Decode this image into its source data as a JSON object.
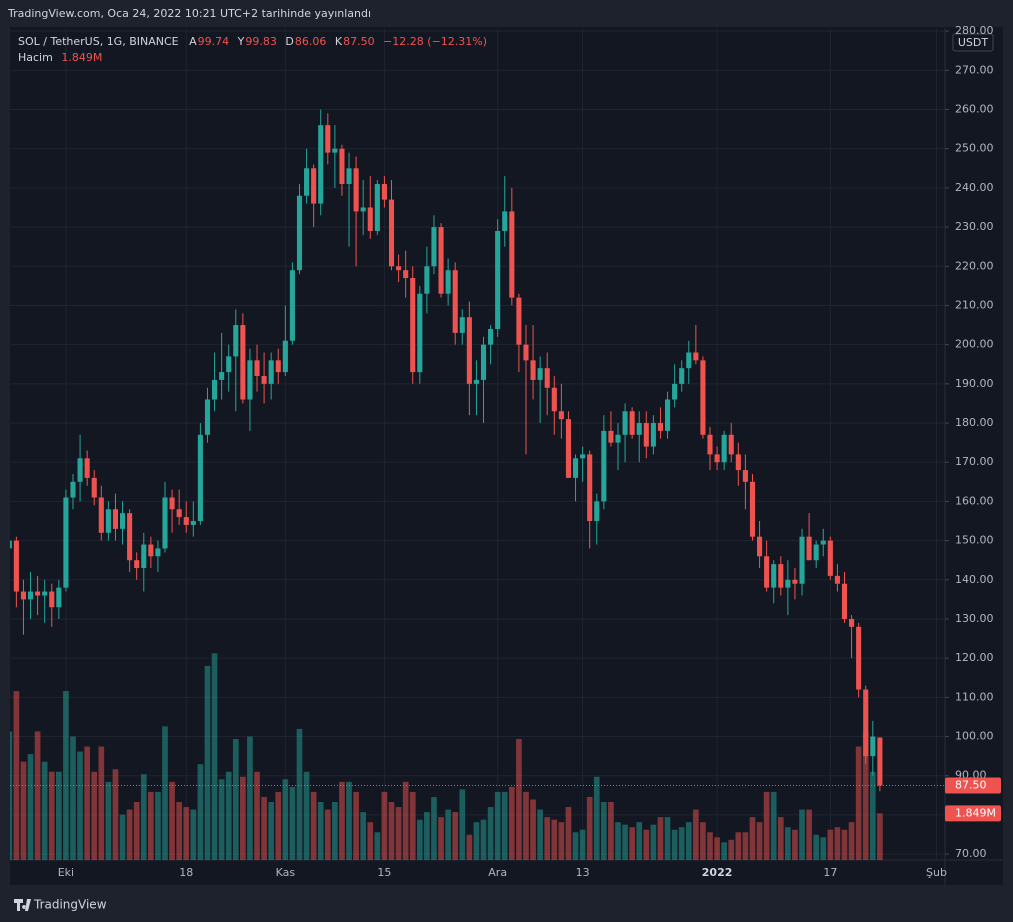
{
  "chart_data": {
    "type": "candlestick",
    "caption": "TradingView.com, Oca 24, 2022 10:21 UTC+2 tarihinde yayınlandı",
    "currency": "USDT",
    "brand": "TradingView",
    "legend": {
      "symbol": "SOL / TetherUS, 1G, BINANCE",
      "labels": [
        "A",
        "Y",
        "D",
        "K"
      ],
      "values": [
        "99.74",
        "99.83",
        "86.06",
        "87.50"
      ],
      "change": "−12.28 (−12.31%)",
      "volume_name": "Hacim",
      "volume_value": "1.849M"
    },
    "last_price_label": "87.50",
    "last_volume_label": "1.849M",
    "up_color": "#26a69a",
    "down_color": "#ef5350",
    "xlim": [
      0.1,
      132.2
    ],
    "xticks": [
      {
        "value": 8,
        "label": "Eki"
      },
      {
        "value": 25,
        "label": "18"
      },
      {
        "value": 39,
        "label": "Kas"
      },
      {
        "value": 53,
        "label": "15"
      },
      {
        "value": 69,
        "label": "Ara"
      },
      {
        "value": 81,
        "label": "13"
      },
      {
        "value": 100,
        "label": "2022"
      },
      {
        "value": 116,
        "label": "17"
      },
      {
        "value": 131,
        "label": "Şub"
      }
    ],
    "ylim": [
      68.5,
      280.8
    ],
    "yticks": [
      {
        "value": 70,
        "label": "70.00"
      },
      {
        "value": 80,
        "label": "80.00"
      },
      {
        "value": 90,
        "label": "90.00"
      },
      {
        "value": 100,
        "label": "100.00"
      },
      {
        "value": 110,
        "label": "110.00"
      },
      {
        "value": 120,
        "label": "120.00"
      },
      {
        "value": 130,
        "label": "130.00"
      },
      {
        "value": 140,
        "label": "140.00"
      },
      {
        "value": 150,
        "label": "150.00"
      },
      {
        "value": 160,
        "label": "160.00"
      },
      {
        "value": 170,
        "label": "170.00"
      },
      {
        "value": 180,
        "label": "180.00"
      },
      {
        "value": 190,
        "label": "190.00"
      },
      {
        "value": 200,
        "label": "200.00"
      },
      {
        "value": 210,
        "label": "210.00"
      },
      {
        "value": 220,
        "label": "220.00"
      },
      {
        "value": 230,
        "label": "230.00"
      },
      {
        "value": 240,
        "label": "240.00"
      },
      {
        "value": 250,
        "label": "250.00"
      },
      {
        "value": 260,
        "label": "260.00"
      },
      {
        "value": 270,
        "label": "270.00"
      },
      {
        "value": 280,
        "label": "280.00"
      }
    ],
    "grid": true,
    "y2lim": [
      0,
      33000000
    ],
    "open": [
      148,
      150,
      137,
      135,
      137,
      136,
      137,
      133,
      138,
      161,
      165,
      171,
      166,
      161,
      152,
      158,
      153,
      157,
      145,
      143,
      149,
      146,
      148,
      161,
      158,
      156,
      154,
      155,
      177,
      186,
      191,
      193,
      197,
      205,
      186,
      196,
      192,
      190,
      196,
      193,
      201,
      219,
      238,
      245,
      236,
      256,
      249,
      250,
      241,
      245,
      234,
      235,
      229,
      241,
      237,
      220,
      219,
      217,
      193,
      213,
      220,
      230,
      213,
      219,
      203,
      207,
      190,
      191,
      200,
      204,
      229,
      234,
      212,
      200,
      196,
      191,
      194,
      189,
      183,
      181,
      166,
      171,
      172,
      155,
      160,
      178,
      175,
      177,
      183,
      177,
      180,
      174,
      180,
      178,
      186,
      190,
      194,
      198,
      196,
      177,
      172,
      170,
      177,
      172,
      168,
      165,
      151,
      146,
      138,
      144,
      138,
      140,
      139,
      151,
      145,
      149,
      150,
      141,
      139,
      130,
      128,
      112,
      95,
      99.74
    ],
    "high": [
      152,
      151,
      140,
      142,
      141,
      140,
      139,
      140,
      163,
      167,
      177,
      173,
      168,
      164,
      160,
      162,
      160,
      158,
      147,
      152,
      151,
      150,
      165,
      163,
      163,
      160,
      160,
      180,
      189,
      198,
      203,
      200,
      209,
      208,
      199,
      200,
      198,
      198,
      199,
      210,
      221,
      241,
      250,
      246,
      260,
      259,
      256,
      251,
      249,
      248,
      242,
      243,
      242,
      243,
      242,
      223,
      224,
      220,
      215,
      225,
      233,
      231,
      222,
      221,
      209,
      211,
      196,
      202,
      205,
      232,
      243,
      240,
      213,
      205,
      205,
      197,
      198,
      192,
      190,
      183,
      172,
      174,
      173,
      162,
      182,
      183,
      180,
      185,
      184,
      183,
      183,
      182,
      184,
      188,
      195,
      196,
      201,
      205,
      197,
      179,
      174,
      178,
      180,
      175,
      172,
      167,
      155,
      150,
      145,
      146,
      145,
      143,
      153,
      157,
      150,
      153,
      151,
      144,
      142,
      131,
      129,
      113,
      104,
      99.83
    ],
    "low": [
      142,
      133,
      126,
      130,
      131,
      129,
      128,
      130,
      137,
      158,
      160,
      164,
      159,
      150,
      150,
      150,
      149,
      142,
      140,
      137,
      143,
      142,
      147,
      152,
      154,
      152,
      151,
      154,
      175,
      183,
      186,
      188,
      183,
      185,
      178,
      188,
      185,
      186,
      190,
      192,
      200,
      218,
      236,
      230,
      233,
      246,
      240,
      238,
      225,
      220,
      228,
      227,
      228,
      235,
      219,
      216,
      212,
      190,
      190,
      208,
      218,
      212,
      210,
      200,
      200,
      182,
      182,
      180,
      195,
      202,
      225,
      210,
      193,
      172,
      186,
      180,
      182,
      177,
      176,
      166,
      160,
      165,
      148,
      149,
      158,
      174,
      168,
      170,
      176,
      170,
      171,
      172,
      176,
      176,
      184,
      188,
      190,
      195,
      176,
      168,
      168,
      168,
      170,
      164,
      158,
      150,
      143,
      137,
      134,
      136,
      131,
      135,
      136,
      145,
      143,
      146,
      140,
      137,
      129,
      120,
      110,
      93,
      90,
      86.06
    ],
    "close": [
      150,
      137,
      135,
      137,
      136,
      137,
      133,
      138,
      161,
      165,
      171,
      166,
      161,
      152,
      158,
      153,
      157,
      145,
      143,
      149,
      146,
      148,
      161,
      158,
      156,
      154,
      155,
      177,
      186,
      191,
      193,
      197,
      205,
      186,
      196,
      192,
      190,
      196,
      193,
      201,
      219,
      238,
      245,
      236,
      256,
      249,
      250,
      241,
      245,
      234,
      235,
      229,
      241,
      237,
      220,
      219,
      217,
      193,
      213,
      220,
      230,
      213,
      219,
      203,
      207,
      190,
      191,
      200,
      204,
      229,
      234,
      212,
      200,
      196,
      191,
      194,
      189,
      183,
      181,
      166,
      171,
      172,
      155,
      160,
      178,
      175,
      177,
      183,
      177,
      180,
      174,
      180,
      178,
      186,
      190,
      194,
      198,
      196,
      177,
      172,
      170,
      177,
      172,
      168,
      165,
      151,
      146,
      138,
      144,
      138,
      140,
      139,
      151,
      145,
      149,
      150,
      141,
      139,
      130,
      128,
      112,
      95,
      100,
      87.5
    ],
    "volume": [
      5100000,
      6700000,
      3900000,
      4200000,
      5100000,
      3900000,
      3500000,
      3500000,
      6700000,
      4900000,
      4300000,
      4500000,
      3500000,
      4500000,
      3100000,
      3600000,
      1800000,
      2000000,
      2300000,
      3400000,
      2700000,
      2700000,
      5300000,
      3100000,
      2300000,
      2100000,
      2000000,
      3800000,
      7700000,
      8200000,
      3200000,
      3500000,
      4800000,
      3300000,
      4900000,
      3500000,
      2500000,
      2300000,
      2700000,
      3200000,
      2900000,
      5200000,
      3500000,
      2700000,
      2300000,
      2000000,
      2300000,
      3100000,
      3100000,
      2700000,
      1900000,
      1500000,
      1100000,
      2700000,
      2300000,
      2100000,
      3100000,
      2700000,
      1600000,
      1900000,
      2500000,
      1700000,
      2000000,
      1900000,
      2800000,
      1000000,
      1500000,
      1600000,
      2100000,
      2700000,
      2700000,
      2900000,
      4800000,
      2700000,
      2400000,
      2000000,
      1700000,
      1600000,
      1500000,
      2100000,
      1100000,
      1200000,
      2500000,
      3300000,
      2300000,
      2300000,
      1500000,
      1400000,
      1300000,
      1500000,
      1200000,
      1400000,
      1700000,
      1700000,
      1200000,
      1300000,
      1500000,
      2000000,
      1500000,
      1100000,
      900000,
      700000,
      800000,
      1100000,
      1100000,
      1700000,
      1500000,
      2700000,
      2700000,
      1700000,
      1300000,
      1200000,
      2000000,
      2000000,
      1000000,
      900000,
      1200000,
      1300000,
      1200000,
      1500000,
      4500000,
      5100000,
      3500000,
      1849000
    ]
  }
}
